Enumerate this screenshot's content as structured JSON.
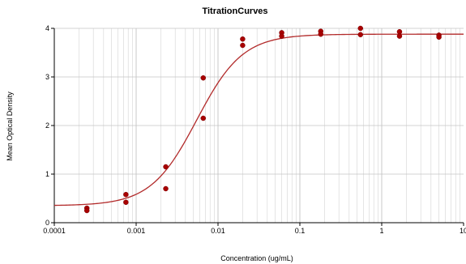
{
  "chart_data": {
    "type": "scatter",
    "title": "TitrationCurves",
    "xlabel": "Concentration (ug/mL)",
    "ylabel": "Mean Optical Density",
    "x_scale": "log",
    "xlim": [
      0.0001,
      10
    ],
    "ylim": [
      0,
      4
    ],
    "x_ticks": [
      0.0001,
      0.001,
      0.01,
      0.1,
      1,
      10
    ],
    "x_tick_labels": [
      "0.0001",
      "0.001",
      "0.01",
      "0.1",
      "1",
      "10"
    ],
    "y_ticks": [
      0,
      1,
      2,
      3,
      4
    ],
    "y_tick_labels": [
      "0",
      "1",
      "2",
      "3",
      "4"
    ],
    "grid": true,
    "legend": "none",
    "colors": {
      "points": "#a80000",
      "curve": "#b22a2a",
      "grid": "#d4d4d4",
      "axis": "#000000"
    },
    "points": [
      {
        "x": 0.00025,
        "y": 0.3
      },
      {
        "x": 0.00025,
        "y": 0.25
      },
      {
        "x": 0.00075,
        "y": 0.58
      },
      {
        "x": 0.00075,
        "y": 0.42
      },
      {
        "x": 0.0023,
        "y": 1.15
      },
      {
        "x": 0.0023,
        "y": 0.7
      },
      {
        "x": 0.0066,
        "y": 2.98
      },
      {
        "x": 0.0066,
        "y": 2.15
      },
      {
        "x": 0.02,
        "y": 3.78
      },
      {
        "x": 0.02,
        "y": 3.65
      },
      {
        "x": 0.06,
        "y": 3.91
      },
      {
        "x": 0.06,
        "y": 3.84
      },
      {
        "x": 0.18,
        "y": 3.94
      },
      {
        "x": 0.18,
        "y": 3.88
      },
      {
        "x": 0.55,
        "y": 4.0
      },
      {
        "x": 0.55,
        "y": 3.87
      },
      {
        "x": 1.65,
        "y": 3.93
      },
      {
        "x": 1.65,
        "y": 3.84
      },
      {
        "x": 5.0,
        "y": 3.86
      },
      {
        "x": 5.0,
        "y": 3.82
      }
    ],
    "fit_curve": {
      "model": "4PL",
      "bottom": 0.35,
      "top": 3.88,
      "ec50": 0.0055,
      "hill": 1.55
    }
  }
}
